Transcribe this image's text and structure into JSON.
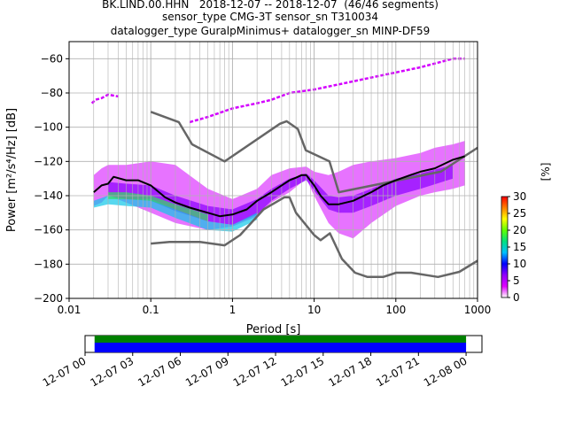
{
  "title_lines": [
    "BK.LIND.00.HHN   2018-12-07 -- 2018-12-07  (46/46 segments)",
    "sensor_type CMG-3T sensor_sn T310034",
    "datalogger_type GuralpMinimus+ datalogger_sn MINP-DF59"
  ],
  "chart_data": [
    {
      "type": "heatmap",
      "xlabel": "Period [s]",
      "ylabel": "Power [m²/s⁴/Hz] [dB]",
      "xscale": "log",
      "xlim": [
        0.01,
        1000
      ],
      "ylim": [
        -200,
        -50
      ],
      "xticks": [
        {
          "value": 0.01,
          "label": "0.01"
        },
        {
          "value": 0.1,
          "label": "0.1"
        },
        {
          "value": 1,
          "label": "1"
        },
        {
          "value": 10,
          "label": "10"
        },
        {
          "value": 100,
          "label": "100"
        },
        {
          "value": 1000,
          "label": "1000"
        }
      ],
      "yticks": [
        -200,
        -180,
        -160,
        -140,
        -120,
        -100,
        -80,
        -60
      ],
      "grid": true,
      "colorbar": {
        "label": "[%]",
        "ticks": [
          0,
          5,
          10,
          15,
          20,
          25,
          30
        ],
        "range": [
          0,
          30
        ],
        "colors": [
          "#ffffff",
          "#e000ff",
          "#9000ff",
          "#0000ff",
          "#00c0ff",
          "#00e080",
          "#60ff00",
          "#ffff00",
          "#ff8000",
          "#ff0000"
        ]
      },
      "noise_models": {
        "color": "#666666",
        "nhnm": {
          "x": [
            0.1,
            0.22,
            0.32,
            0.8,
            3.8,
            4.6,
            6.3,
            7.9,
            15.4,
            20,
            354.8,
            1000
          ],
          "y": [
            -91,
            -97,
            -110,
            -120,
            -98,
            -96.5,
            -101,
            -113.5,
            -120,
            -138,
            -126,
            -112
          ]
        },
        "nlnm": {
          "x": [
            0.1,
            0.17,
            0.4,
            0.8,
            1.24,
            2.4,
            4.3,
            5,
            6,
            10,
            12,
            15.6,
            21.9,
            31.6,
            45,
            70,
            101,
            154,
            328,
            600,
            1000
          ],
          "y": [
            -168,
            -167,
            -167,
            -169,
            -163,
            -148,
            -141,
            -141,
            -150,
            -163,
            -166,
            -162,
            -177,
            -185,
            -187.5,
            -187.5,
            -185,
            -185,
            -187.5,
            -184.5,
            -178
          ]
        }
      },
      "mode_curve": {
        "color": "#000000",
        "x": [
          0.02,
          0.025,
          0.03,
          0.035,
          0.05,
          0.07,
          0.1,
          0.15,
          0.2,
          0.3,
          0.5,
          0.7,
          1,
          1.5,
          2,
          3,
          4,
          5,
          6,
          7,
          8,
          10,
          12,
          15,
          20,
          30,
          50,
          70,
          100,
          150,
          200,
          300,
          500,
          700
        ],
        "y": [
          -138,
          -134,
          -133,
          -129,
          -131,
          -131,
          -134,
          -141,
          -144,
          -147,
          -150,
          -152,
          -151,
          -148,
          -143,
          -138,
          -134,
          -131,
          -129.5,
          -128,
          -128,
          -134,
          -140,
          -145,
          -145,
          -143,
          -138,
          -134,
          -131,
          -128,
          -126,
          -124,
          -119,
          -117
        ]
      },
      "psd_density_bands": [
        {
          "level": 1,
          "x": [
            0.02,
            0.025,
            0.03,
            0.05,
            0.1,
            0.2,
            0.5,
            1,
            2,
            3,
            5,
            8,
            10,
            15,
            20,
            30,
            50,
            100,
            200,
            300,
            500,
            700
          ],
          "upper": [
            -128,
            -124,
            -122,
            -122,
            -120,
            -122,
            -136,
            -142,
            -136,
            -128,
            -124,
            -123,
            -126,
            -128,
            -126,
            -122,
            -120,
            -118,
            -115,
            -112,
            -110,
            -108
          ],
          "lower": [
            -146,
            -144,
            -140,
            -144,
            -150,
            -156,
            -160,
            -158,
            -152,
            -144,
            -138,
            -130,
            -140,
            -156,
            -162,
            -165,
            -156,
            -146,
            -140,
            -138,
            -136,
            -134
          ]
        },
        {
          "level": 2,
          "x": [
            0.03,
            0.05,
            0.1,
            0.2,
            0.5,
            1,
            2,
            3,
            5,
            8,
            10,
            15,
            20,
            30,
            50,
            100,
            200,
            500
          ],
          "upper": [
            -132,
            -133,
            -134,
            -140,
            -146,
            -148,
            -142,
            -136,
            -130,
            -127,
            -131,
            -140,
            -141,
            -140,
            -136,
            -130,
            -127,
            -122
          ],
          "lower": [
            -140,
            -142,
            -143,
            -149,
            -155,
            -157,
            -151,
            -143,
            -136,
            -131,
            -137,
            -148,
            -150,
            -150,
            -146,
            -140,
            -136,
            -130
          ]
        },
        {
          "level": 3,
          "x": [
            0.02,
            0.03,
            0.05,
            0.1,
            0.2,
            0.5,
            1,
            2
          ],
          "upper": [
            -143,
            -140,
            -142,
            -142,
            -148,
            -155,
            -157,
            -150
          ],
          "lower": [
            -147,
            -145,
            -146,
            -147,
            -153,
            -160,
            -161,
            -154
          ]
        },
        {
          "level": 4,
          "x": [
            0.03,
            0.05,
            0.1,
            0.2,
            0.5
          ],
          "upper": [
            -138,
            -138,
            -140,
            -145,
            -151
          ],
          "lower": [
            -142,
            -142,
            -143,
            -148,
            -155
          ]
        }
      ],
      "psd_density_outliers": {
        "low_period_branch": {
          "x": [
            0.019,
            0.021,
            0.025,
            0.03,
            0.04
          ],
          "y": [
            -86,
            -84,
            -83,
            -81,
            -82
          ]
        },
        "high_noise_branch": {
          "x": [
            0.3,
            0.5,
            1,
            2,
            3,
            5,
            10,
            20,
            50,
            100,
            200,
            500,
            700
          ],
          "y": [
            -97,
            -94,
            -89,
            -86,
            -84,
            -80,
            -78,
            -75,
            -71,
            -68,
            -65,
            -60,
            -60
          ]
        }
      }
    },
    {
      "type": "timeline",
      "xlim": [
        "2018-12-07 00",
        "2018-12-08 01"
      ],
      "tick_labels": [
        "12-07 00",
        "12-07 03",
        "12-07 06",
        "12-07 09",
        "12-07 12",
        "12-07 15",
        "12-07 18",
        "12-07 21",
        "12-08 00"
      ],
      "tick_hours": [
        0,
        3,
        6,
        9,
        12,
        15,
        18,
        21,
        24
      ],
      "data_availability": {
        "color": "#008000",
        "start_hour": 0.6,
        "end_hour": 24.0
      },
      "psd_segments": {
        "color": "#0000ff",
        "start_hour": 0.6,
        "end_hour": 24.0
      }
    }
  ]
}
